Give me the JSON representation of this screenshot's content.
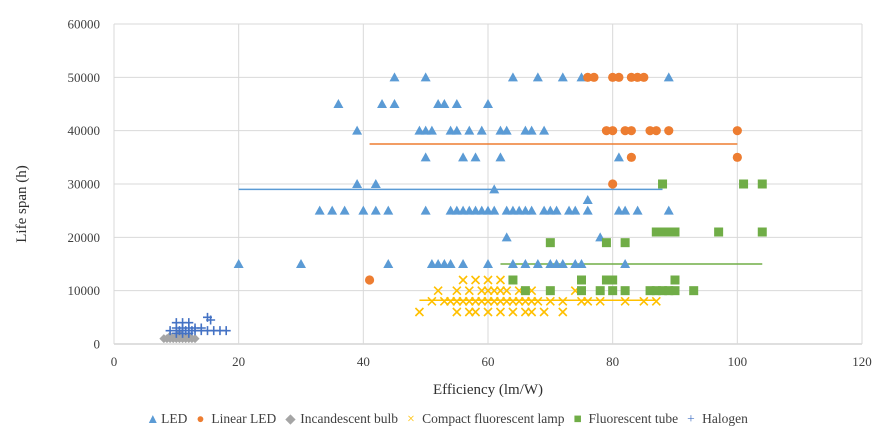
{
  "chart_data": {
    "type": "scatter",
    "title": "",
    "xlabel": "Efficiency (lm/W)",
    "ylabel": "Life span (h)",
    "xlim": [
      0,
      120
    ],
    "ylim": [
      0,
      60000
    ],
    "x_ticks": [
      "0",
      "20",
      "40",
      "60",
      "80",
      "100",
      "120"
    ],
    "y_ticks": [
      "0",
      "10000",
      "20000",
      "30000",
      "40000",
      "50000",
      "60000"
    ],
    "grid": true,
    "legend_position": "bottom",
    "series": [
      {
        "name": "LED",
        "color": "#5B9BD5",
        "marker": "triangle",
        "legend_symbol": "▲",
        "trendline": [
          [
            20,
            29000
          ],
          [
            88,
            29000
          ]
        ],
        "points": [
          [
            45,
            50000
          ],
          [
            50,
            50000
          ],
          [
            64,
            50000
          ],
          [
            68,
            50000
          ],
          [
            72,
            50000
          ],
          [
            75,
            50000
          ],
          [
            89,
            50000
          ],
          [
            36,
            45000
          ],
          [
            43,
            45000
          ],
          [
            45,
            45000
          ],
          [
            52,
            45000
          ],
          [
            53,
            45000
          ],
          [
            55,
            45000
          ],
          [
            60,
            45000
          ],
          [
            39,
            40000
          ],
          [
            49,
            40000
          ],
          [
            50,
            40000
          ],
          [
            51,
            40000
          ],
          [
            54,
            40000
          ],
          [
            55,
            40000
          ],
          [
            57,
            40000
          ],
          [
            59,
            40000
          ],
          [
            62,
            40000
          ],
          [
            63,
            40000
          ],
          [
            66,
            40000
          ],
          [
            67,
            40000
          ],
          [
            69,
            40000
          ],
          [
            50,
            35000
          ],
          [
            56,
            35000
          ],
          [
            58,
            35000
          ],
          [
            62,
            35000
          ],
          [
            81,
            35000
          ],
          [
            39,
            30000
          ],
          [
            42,
            30000
          ],
          [
            61,
            29000
          ],
          [
            76,
            27000
          ],
          [
            33,
            25000
          ],
          [
            35,
            25000
          ],
          [
            37,
            25000
          ],
          [
            40,
            25000
          ],
          [
            42,
            25000
          ],
          [
            44,
            25000
          ],
          [
            50,
            25000
          ],
          [
            54,
            25000
          ],
          [
            55,
            25000
          ],
          [
            56,
            25000
          ],
          [
            57,
            25000
          ],
          [
            58,
            25000
          ],
          [
            59,
            25000
          ],
          [
            60,
            25000
          ],
          [
            61,
            25000
          ],
          [
            63,
            25000
          ],
          [
            64,
            25000
          ],
          [
            65,
            25000
          ],
          [
            66,
            25000
          ],
          [
            67,
            25000
          ],
          [
            69,
            25000
          ],
          [
            70,
            25000
          ],
          [
            71,
            25000
          ],
          [
            73,
            25000
          ],
          [
            74,
            25000
          ],
          [
            76,
            25000
          ],
          [
            81,
            25000
          ],
          [
            82,
            25000
          ],
          [
            84,
            25000
          ],
          [
            89,
            25000
          ],
          [
            63,
            20000
          ],
          [
            78,
            20000
          ],
          [
            20,
            15000
          ],
          [
            30,
            15000
          ],
          [
            44,
            15000
          ],
          [
            51,
            15000
          ],
          [
            52,
            15000
          ],
          [
            53,
            15000
          ],
          [
            54,
            15000
          ],
          [
            56,
            15000
          ],
          [
            60,
            15000
          ],
          [
            64,
            15000
          ],
          [
            66,
            15000
          ],
          [
            68,
            15000
          ],
          [
            70,
            15000
          ],
          [
            71,
            15000
          ],
          [
            72,
            15000
          ],
          [
            74,
            15000
          ],
          [
            75,
            15000
          ],
          [
            82,
            15000
          ]
        ]
      },
      {
        "name": "Linear LED",
        "color": "#ED7D31",
        "marker": "circle",
        "legend_symbol": "●",
        "trendline": [
          [
            41,
            37500
          ],
          [
            100,
            37500
          ]
        ],
        "points": [
          [
            76,
            50000
          ],
          [
            77,
            50000
          ],
          [
            80,
            50000
          ],
          [
            81,
            50000
          ],
          [
            83,
            50000
          ],
          [
            84,
            50000
          ],
          [
            85,
            50000
          ],
          [
            79,
            40000
          ],
          [
            80,
            40000
          ],
          [
            82,
            40000
          ],
          [
            83,
            40000
          ],
          [
            86,
            40000
          ],
          [
            87,
            40000
          ],
          [
            89,
            40000
          ],
          [
            100,
            40000
          ],
          [
            83,
            35000
          ],
          [
            100,
            35000
          ],
          [
            80,
            30000
          ],
          [
            41,
            12000
          ]
        ]
      },
      {
        "name": "Incandescent bulb",
        "color": "#A5A5A5",
        "marker": "diamond",
        "legend_symbol": "◆",
        "trendline": [
          [
            8,
            1200
          ],
          [
            12,
            1200
          ]
        ],
        "points": [
          [
            8,
            1000
          ],
          [
            8.5,
            1000
          ],
          [
            9,
            1000
          ],
          [
            9.5,
            1000
          ],
          [
            10,
            1000
          ],
          [
            10.5,
            1000
          ],
          [
            11,
            1000
          ],
          [
            11.5,
            1000
          ],
          [
            12,
            1000
          ],
          [
            12.5,
            1000
          ],
          [
            13,
            1000
          ],
          [
            9,
            1500
          ],
          [
            10,
            1500
          ],
          [
            11,
            1500
          ],
          [
            12,
            1500
          ],
          [
            10.5,
            2000
          ]
        ]
      },
      {
        "name": "Compact fluorescent lamp",
        "color": "#FFC000",
        "marker": "x",
        "legend_symbol": "×",
        "trendline": [
          [
            49,
            8200
          ],
          [
            87,
            8200
          ]
        ],
        "points": [
          [
            56,
            12000
          ],
          [
            58,
            12000
          ],
          [
            60,
            12000
          ],
          [
            62,
            12000
          ],
          [
            64,
            12000
          ],
          [
            52,
            10000
          ],
          [
            55,
            10000
          ],
          [
            57,
            10000
          ],
          [
            59,
            10000
          ],
          [
            60,
            10000
          ],
          [
            61,
            10000
          ],
          [
            62,
            10000
          ],
          [
            63,
            10000
          ],
          [
            65,
            10000
          ],
          [
            67,
            10000
          ],
          [
            74,
            10000
          ],
          [
            51,
            8000
          ],
          [
            53,
            8000
          ],
          [
            54,
            8000
          ],
          [
            55,
            8000
          ],
          [
            56,
            8000
          ],
          [
            57,
            8000
          ],
          [
            58,
            8000
          ],
          [
            59,
            8000
          ],
          [
            60,
            8000
          ],
          [
            61,
            8000
          ],
          [
            62,
            8000
          ],
          [
            63,
            8000
          ],
          [
            64,
            8000
          ],
          [
            65,
            8000
          ],
          [
            66,
            8000
          ],
          [
            67,
            8000
          ],
          [
            68,
            8000
          ],
          [
            70,
            8000
          ],
          [
            72,
            8000
          ],
          [
            75,
            8000
          ],
          [
            76,
            8000
          ],
          [
            78,
            8000
          ],
          [
            82,
            8000
          ],
          [
            85,
            8000
          ],
          [
            87,
            8000
          ],
          [
            49,
            6000
          ],
          [
            55,
            6000
          ],
          [
            57,
            6000
          ],
          [
            58,
            6000
          ],
          [
            60,
            6000
          ],
          [
            62,
            6000
          ],
          [
            64,
            6000
          ],
          [
            66,
            6000
          ],
          [
            67,
            6000
          ],
          [
            69,
            6000
          ],
          [
            72,
            6000
          ]
        ]
      },
      {
        "name": "Fluorescent tube",
        "color": "#70AD47",
        "marker": "square",
        "legend_symbol": "■",
        "trendline": [
          [
            62,
            15000
          ],
          [
            104,
            15000
          ]
        ],
        "points": [
          [
            88,
            30000
          ],
          [
            101,
            30000
          ],
          [
            104,
            30000
          ],
          [
            87,
            21000
          ],
          [
            88,
            21000
          ],
          [
            89,
            21000
          ],
          [
            90,
            21000
          ],
          [
            97,
            21000
          ],
          [
            104,
            21000
          ],
          [
            70,
            19000
          ],
          [
            79,
            19000
          ],
          [
            82,
            19000
          ],
          [
            64,
            12000
          ],
          [
            75,
            12000
          ],
          [
            79,
            12000
          ],
          [
            80,
            12000
          ],
          [
            90,
            12000
          ],
          [
            66,
            10000
          ],
          [
            70,
            10000
          ],
          [
            75,
            10000
          ],
          [
            78,
            10000
          ],
          [
            80,
            10000
          ],
          [
            82,
            10000
          ],
          [
            86,
            10000
          ],
          [
            87,
            10000
          ],
          [
            88,
            10000
          ],
          [
            89,
            10000
          ],
          [
            90,
            10000
          ],
          [
            93,
            10000
          ]
        ]
      },
      {
        "name": "Halogen",
        "color": "#4472C4",
        "marker": "plus",
        "legend_symbol": "+",
        "trendline": [
          [
            10,
            2500
          ],
          [
            18,
            2500
          ]
        ],
        "points": [
          [
            10,
            4000
          ],
          [
            11,
            4000
          ],
          [
            12,
            4000
          ],
          [
            15,
            5000
          ],
          [
            15.5,
            4500
          ],
          [
            9,
            2500
          ],
          [
            10,
            2500
          ],
          [
            10.5,
            2500
          ],
          [
            11,
            2500
          ],
          [
            11.5,
            2500
          ],
          [
            12,
            2500
          ],
          [
            12.5,
            2500
          ],
          [
            13,
            2500
          ],
          [
            14,
            2500
          ],
          [
            15,
            2500
          ],
          [
            16,
            2500
          ],
          [
            17,
            2500
          ],
          [
            18,
            2500
          ],
          [
            10,
            3000
          ],
          [
            11,
            3000
          ],
          [
            12,
            3000
          ],
          [
            13,
            3000
          ],
          [
            14,
            3000
          ],
          [
            10,
            2000
          ],
          [
            11,
            2000
          ],
          [
            12,
            2000
          ]
        ]
      }
    ]
  }
}
